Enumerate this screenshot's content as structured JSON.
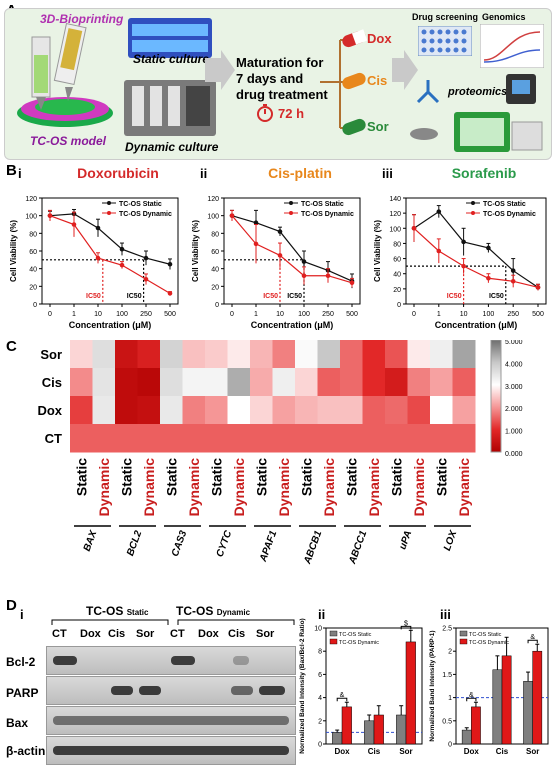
{
  "panelA": {
    "letter": "A",
    "bioprinting": "3D-Bioprinting",
    "model": "TC-OS model",
    "static_culture": "Static culture",
    "dynamic_culture": "Dynamic culture",
    "maturation_line1": "Maturation for",
    "maturation_line2": "7 days and",
    "maturation_line3": "drug treatment",
    "time": "72 h",
    "drugs": [
      "Dox",
      "Cis",
      "Sor"
    ],
    "drug_colors": [
      "#d42a2a",
      "#e8871c",
      "#2a8a3a"
    ],
    "drug_screening": "Drug screening",
    "genomics": "Genomics",
    "proteomics": "proteomics",
    "bg_color": "#e9f3e5"
  },
  "panelB": {
    "letter": "B",
    "static_color": "#111111",
    "dynamic_color": "#e02020"
  },
  "panelC": {
    "letter": "C"
  },
  "panelD": {
    "letter": "D",
    "sub_i": "i",
    "group_static": "TC-OS",
    "group_static_sub": "Static",
    "group_dynamic": "TC-OS",
    "group_dynamic_sub": "Dynamic",
    "lanes": [
      "CT",
      "Dox",
      "Cis",
      "Sor",
      "CT",
      "Dox",
      "Cis",
      "Sor"
    ],
    "proteins": [
      "Bcl-2",
      "PARP",
      "Bax",
      "β-actin"
    ],
    "sub_ii": "ii",
    "sub_iii": "iii"
  },
  "chart_data": [
    {
      "type": "line",
      "roman": "i",
      "title": "Doxorubicin",
      "title_color": "#d42a2a",
      "xlabel": "Concentration (μM)",
      "ylabel": "Cell Viability (%)",
      "x_ticks": [
        "0",
        "1",
        "10",
        "100",
        "250",
        "500"
      ],
      "ylim": [
        0,
        120
      ],
      "y_ticks": [
        0,
        20,
        40,
        60,
        80,
        100,
        120
      ],
      "series": [
        {
          "name": "TC-OS Static",
          "values": [
            100,
            102,
            86,
            62,
            52,
            45
          ],
          "errors": [
            5,
            5,
            10,
            7,
            8,
            6
          ]
        },
        {
          "name": "TC-OS Dynamic",
          "values": [
            100,
            90,
            52,
            44,
            28,
            12
          ],
          "errors": [
            6,
            14,
            6,
            4,
            6,
            2
          ]
        }
      ],
      "ic50_labels": [
        "IC50",
        "IC50"
      ],
      "ic50_y": 50,
      "ic50_x_index": [
        2.2,
        3.9
      ]
    },
    {
      "type": "line",
      "roman": "ii",
      "title": "Cis-platin",
      "title_color": "#e8871c",
      "xlabel": "Concentration (μM)",
      "ylabel": "Cell Viability (%)",
      "x_ticks": [
        "0",
        "1",
        "10",
        "100",
        "250",
        "500"
      ],
      "ylim": [
        0,
        120
      ],
      "y_ticks": [
        0,
        20,
        40,
        60,
        80,
        100,
        120
      ],
      "series": [
        {
          "name": "TC-OS Static",
          "values": [
            100,
            92,
            82,
            48,
            38,
            26
          ],
          "errors": [
            6,
            14,
            5,
            12,
            10,
            8
          ]
        },
        {
          "name": "TC-OS Dynamic",
          "values": [
            100,
            68,
            55,
            32,
            32,
            24
          ],
          "errors": [
            6,
            22,
            14,
            10,
            8,
            5
          ]
        }
      ],
      "ic50_labels": [
        "IC50",
        "IC50"
      ],
      "ic50_y": 50,
      "ic50_x_index": [
        2.0,
        3.0
      ]
    },
    {
      "type": "line",
      "roman": "iii",
      "title": "Sorafenib",
      "title_color": "#2a9a4a",
      "xlabel": "Concentration (μM)",
      "ylabel": "Cell Viability (%)",
      "x_ticks": [
        "0",
        "1",
        "10",
        "100",
        "250",
        "500"
      ],
      "ylim": [
        0,
        140
      ],
      "y_ticks": [
        0,
        20,
        40,
        60,
        80,
        100,
        120,
        140
      ],
      "series": [
        {
          "name": "TC-OS Static",
          "values": [
            100,
            122,
            82,
            74,
            44,
            22
          ],
          "errors": [
            18,
            8,
            18,
            6,
            16,
            4
          ]
        },
        {
          "name": "TC-OS Dynamic",
          "values": [
            100,
            70,
            50,
            34,
            30,
            22
          ],
          "errors": [
            18,
            16,
            10,
            6,
            8,
            4
          ]
        }
      ],
      "ic50_labels": [
        "IC50",
        "IC50"
      ],
      "ic50_y": 50,
      "ic50_x_index": [
        2.0,
        3.7
      ]
    },
    {
      "type": "heatmap",
      "rows": [
        "Sor",
        "Cis",
        "Dox",
        "CT"
      ],
      "genes": [
        "BAX",
        "BCL2",
        "CAS3",
        "CYTC",
        "APAF1",
        "ABCB1",
        "ABCC1",
        "uPA",
        "LOX"
      ],
      "conditions": [
        "Static",
        "Dynamic"
      ],
      "values": [
        [
          2.6,
          3.6,
          0.5,
          0.8,
          3.8,
          2.4,
          2.5,
          2.8,
          2.3,
          1.8,
          3.1,
          4.0,
          1.6,
          1.0,
          1.4,
          2.8,
          3.3,
          4.4
        ],
        [
          1.9,
          3.5,
          0.3,
          0.2,
          3.6,
          3.2,
          3.2,
          4.3,
          2.2,
          3.3,
          2.6,
          1.5,
          1.6,
          1.0,
          0.7,
          1.8,
          2.1,
          1.5
        ],
        [
          1.2,
          3.4,
          0.3,
          0.4,
          3.4,
          1.8,
          2.0,
          3.0,
          2.6,
          2.1,
          2.3,
          2.4,
          2.4,
          1.5,
          1.6,
          1.3,
          3.0,
          2.1
        ],
        [
          1.5,
          1.5,
          1.5,
          1.5,
          1.5,
          1.5,
          1.5,
          1.5,
          1.5,
          1.5,
          1.5,
          1.5,
          1.5,
          1.5,
          1.5,
          1.5,
          1.5,
          1.5
        ]
      ],
      "colorbar_ticks": [
        "5.000",
        "4.000",
        "3.000",
        "2.000",
        "1.000",
        "0.000"
      ],
      "range": [
        0,
        5
      ]
    },
    {
      "type": "bar",
      "roman": "ii",
      "ylabel": "Normalized Band Intensity (Bax/Bcl-2 Ratio)",
      "categories": [
        "Dox",
        "Cis",
        "Sor"
      ],
      "ylim": [
        0,
        10
      ],
      "y_ticks": [
        0,
        2,
        4,
        6,
        8,
        10
      ],
      "series": [
        {
          "name": "TC-OS Static",
          "values": [
            1.0,
            2.0,
            2.5
          ],
          "errors": [
            0.2,
            0.5,
            0.8
          ]
        },
        {
          "name": "TC-OS Dynamic",
          "values": [
            3.2,
            2.5,
            8.8
          ],
          "errors": [
            0.4,
            0.8,
            1.0
          ]
        }
      ],
      "sig": [
        "&",
        "",
        "$"
      ]
    },
    {
      "type": "bar",
      "roman": "iii",
      "ylabel": "Normalized Band Intensity (PARP-1)",
      "categories": [
        "Dox",
        "Cis",
        "Sor"
      ],
      "ylim": [
        0,
        2.5
      ],
      "y_ticks": [
        0.0,
        0.5,
        1.0,
        1.5,
        2.0,
        2.5
      ],
      "series": [
        {
          "name": "TC-OS Static",
          "values": [
            0.3,
            1.6,
            1.35
          ],
          "errors": [
            0.05,
            0.3,
            0.2
          ]
        },
        {
          "name": "TC-OS Dynamic",
          "values": [
            0.8,
            1.9,
            2.0
          ],
          "errors": [
            0.1,
            0.4,
            0.15
          ]
        }
      ],
      "sig": [
        "&",
        "",
        "&"
      ]
    }
  ]
}
